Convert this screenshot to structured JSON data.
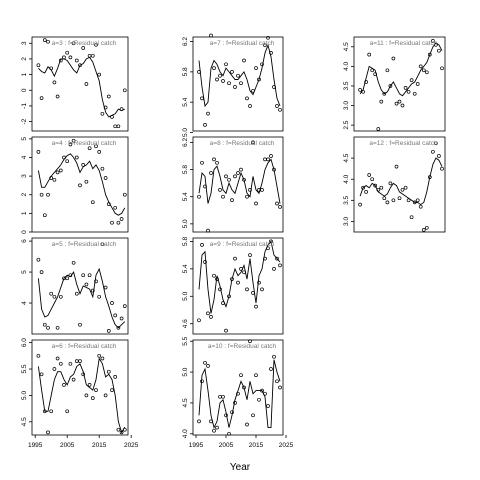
{
  "figure": {
    "xlabel": "Year"
  },
  "chart_data": [
    {
      "type": "line",
      "label": "a=3  :  f=Residual catch",
      "xlim": [
        1994,
        2024
      ],
      "ylim": [
        -2.6,
        3.4
      ],
      "xticks": [],
      "yticks": [
        -2,
        -1,
        0,
        1,
        2,
        3
      ],
      "points_x": [
        1996,
        1997,
        1998,
        1999,
        2000,
        2001,
        2002,
        2003,
        2004,
        2005,
        2006,
        2007,
        2008,
        2009,
        2010,
        2011,
        2012,
        2013,
        2014,
        2015,
        2016,
        2017,
        2018,
        2019,
        2020,
        2021,
        2022,
        2023
      ],
      "points_y": [
        1.6,
        -0.5,
        3.2,
        3.1,
        1.4,
        0.5,
        -0.4,
        1.9,
        2.1,
        2.4,
        2.1,
        3.0,
        1.9,
        1.6,
        2.7,
        0.4,
        2.2,
        2.2,
        2.9,
        1.0,
        -1.5,
        -1.1,
        -0.4,
        -1.7,
        -2.3,
        -2.3,
        -1.2,
        0.0
      ],
      "line_x": [
        1996,
        1997,
        1998,
        1999,
        2000,
        2001,
        2002,
        2003,
        2004,
        2005,
        2006,
        2007,
        2008,
        2009,
        2010,
        2011,
        2012,
        2013,
        2014,
        2015,
        2016,
        2017,
        2018,
        2019,
        2020,
        2021,
        2022,
        2023
      ],
      "line_y": [
        1.4,
        1.2,
        1.1,
        1.5,
        1.3,
        0.9,
        1.4,
        2.0,
        2.0,
        1.9,
        1.6,
        1.3,
        1.1,
        1.6,
        1.7,
        2.0,
        2.1,
        1.8,
        1.2,
        0.6,
        -0.6,
        -1.4,
        -1.7,
        -1.6,
        -1.5,
        -1.2,
        -1.3,
        -1.2
      ]
    },
    {
      "type": "line",
      "label": "a=7  :  f=Residual catch",
      "xlim": [
        1994,
        2024
      ],
      "ylim": [
        5.02,
        6.26
      ],
      "xticks": [],
      "yticks": [
        5.0,
        5.4,
        5.8,
        6.2
      ],
      "points_x": [
        1996,
        1997,
        1998,
        1999,
        2000,
        2001,
        2002,
        2003,
        2004,
        2005,
        2006,
        2007,
        2008,
        2009,
        2010,
        2011,
        2012,
        2013,
        2014,
        2015,
        2016,
        2017,
        2018,
        2019,
        2020,
        2021,
        2022,
        2023
      ],
      "points_y": [
        5.8,
        5.45,
        5.1,
        5.25,
        6.28,
        5.85,
        5.7,
        5.75,
        5.68,
        5.9,
        5.65,
        5.8,
        5.6,
        5.75,
        5.65,
        5.95,
        5.45,
        5.35,
        5.55,
        5.85,
        5.7,
        5.9,
        6.15,
        6.25,
        6.05,
        5.6,
        5.35,
        5.3
      ],
      "line_x": [
        1996,
        1997,
        1998,
        1999,
        2000,
        2001,
        2002,
        2003,
        2004,
        2005,
        2006,
        2007,
        2008,
        2009,
        2010,
        2011,
        2012,
        2013,
        2014,
        2015,
        2016,
        2017,
        2018,
        2019,
        2020,
        2021,
        2022,
        2023
      ],
      "line_y": [
        5.95,
        5.6,
        5.35,
        5.4,
        5.85,
        5.95,
        5.9,
        5.8,
        5.75,
        5.85,
        5.8,
        5.75,
        5.7,
        5.7,
        5.75,
        5.8,
        5.7,
        5.55,
        5.5,
        5.6,
        5.7,
        5.85,
        6.05,
        6.15,
        6.0,
        5.7,
        5.45,
        5.35
      ]
    },
    {
      "type": "line",
      "label": "a=11  :  f=Residual catch",
      "xlim": [
        1994,
        2024
      ],
      "ylim": [
        2.35,
        4.75
      ],
      "xticks": [],
      "yticks": [
        2.5,
        3.0,
        3.5,
        4.0,
        4.5
      ],
      "points_x": [
        1996,
        1997,
        1998,
        1999,
        2000,
        2001,
        2002,
        2003,
        2004,
        2005,
        2006,
        2007,
        2008,
        2009,
        2010,
        2011,
        2012,
        2013,
        2014,
        2015,
        2016,
        2017,
        2018,
        2019,
        2020,
        2021,
        2022,
        2023
      ],
      "points_y": [
        3.4,
        3.35,
        3.6,
        4.3,
        3.9,
        3.8,
        2.4,
        3.1,
        3.3,
        3.9,
        3.5,
        4.2,
        3.05,
        3.1,
        3.0,
        3.45,
        3.35,
        3.65,
        3.3,
        3.55,
        4.0,
        3.9,
        3.85,
        4.3,
        4.65,
        4.55,
        4.4,
        3.95
      ],
      "line_x": [
        1996,
        1997,
        1998,
        1999,
        2000,
        2001,
        2002,
        2003,
        2004,
        2005,
        2006,
        2007,
        2008,
        2009,
        2010,
        2011,
        2012,
        2013,
        2014,
        2015,
        2016,
        2017,
        2018,
        2019,
        2020,
        2021,
        2022,
        2023
      ],
      "line_y": [
        3.3,
        3.4,
        3.7,
        4.0,
        3.95,
        3.9,
        3.6,
        3.4,
        3.3,
        3.35,
        3.5,
        3.6,
        3.45,
        3.3,
        3.25,
        3.35,
        3.45,
        3.55,
        3.6,
        3.75,
        3.9,
        4.0,
        4.1,
        4.3,
        4.5,
        4.6,
        4.55,
        4.4
      ]
    },
    {
      "type": "line",
      "label": "a=4  :  f=Residual catch",
      "xlim": [
        1994,
        2024
      ],
      "ylim": [
        0.0,
        5.1
      ],
      "xticks": [],
      "yticks": [
        0,
        1,
        2,
        3,
        4,
        5
      ],
      "points_x": [
        1996,
        1997,
        1998,
        1999,
        2000,
        2001,
        2002,
        2003,
        2004,
        2005,
        2006,
        2007,
        2008,
        2009,
        2010,
        2011,
        2012,
        2013,
        2014,
        2015,
        2016,
        2017,
        2018,
        2019,
        2020,
        2021,
        2022,
        2023
      ],
      "points_y": [
        4.3,
        2.0,
        0.9,
        2.0,
        2.9,
        2.8,
        3.2,
        3.3,
        4.0,
        3.8,
        4.7,
        4.9,
        4.0,
        2.5,
        3.6,
        2.7,
        4.5,
        1.6,
        4.6,
        4.3,
        3.4,
        2.9,
        1.5,
        0.5,
        1.3,
        0.5,
        0.7,
        2.0
      ],
      "line_x": [
        1996,
        1997,
        1998,
        1999,
        2000,
        2001,
        2002,
        2003,
        2004,
        2005,
        2006,
        2007,
        2008,
        2009,
        2010,
        2011,
        2012,
        2013,
        2014,
        2015,
        2016,
        2017,
        2018,
        2019,
        2020,
        2021,
        2022,
        2023
      ],
      "line_y": [
        3.3,
        2.4,
        2.4,
        2.7,
        3.0,
        3.2,
        3.4,
        3.6,
        3.9,
        4.1,
        4.2,
        4.0,
        3.7,
        3.2,
        3.5,
        3.6,
        3.8,
        3.4,
        3.6,
        3.3,
        2.7,
        2.0,
        1.6,
        1.3,
        1.0,
        0.9,
        1.0,
        1.3
      ]
    },
    {
      "type": "line",
      "label": "a=8  :  f=Residual catch",
      "xlim": [
        1994,
        2024
      ],
      "ylim": [
        4.88,
        6.28
      ],
      "xticks": [],
      "yticks": [
        5.0,
        5.4,
        5.8,
        6.2
      ],
      "points_x": [
        1996,
        1997,
        1998,
        1999,
        2000,
        2001,
        2002,
        2003,
        2004,
        2005,
        2006,
        2007,
        2008,
        2009,
        2010,
        2011,
        2012,
        2013,
        2014,
        2015,
        2016,
        2017,
        2018,
        2019,
        2020,
        2021,
        2022,
        2023
      ],
      "points_y": [
        5.4,
        5.9,
        5.55,
        4.9,
        5.75,
        5.95,
        5.9,
        5.5,
        5.4,
        5.7,
        5.65,
        5.35,
        5.7,
        5.75,
        5.8,
        5.65,
        5.4,
        5.5,
        6.2,
        5.3,
        5.5,
        5.5,
        5.95,
        5.95,
        6.0,
        5.8,
        5.3,
        5.25
      ],
      "line_x": [
        1996,
        1997,
        1998,
        1999,
        2000,
        2001,
        2002,
        2003,
        2004,
        2005,
        2006,
        2007,
        2008,
        2009,
        2010,
        2011,
        2012,
        2013,
        2014,
        2015,
        2016,
        2017,
        2018,
        2019,
        2020,
        2021,
        2022,
        2023
      ],
      "line_y": [
        5.45,
        5.75,
        5.7,
        5.3,
        5.45,
        5.8,
        5.85,
        5.7,
        5.5,
        5.45,
        5.6,
        5.5,
        5.45,
        5.6,
        5.75,
        5.65,
        5.45,
        5.4,
        5.7,
        5.5,
        5.45,
        5.6,
        5.8,
        5.9,
        5.95,
        5.8,
        5.55,
        5.3
      ]
    },
    {
      "type": "line",
      "label": "a=12  :  f=Residual catch",
      "xlim": [
        1994,
        2024
      ],
      "ylim": [
        2.75,
        5.0
      ],
      "xticks": [],
      "yticks": [
        3.0,
        3.5,
        4.0,
        4.5
      ],
      "points_x": [
        1996,
        1997,
        1998,
        1999,
        2000,
        2001,
        2002,
        2003,
        2004,
        2005,
        2006,
        2007,
        2008,
        2009,
        2010,
        2011,
        2012,
        2013,
        2014,
        2015,
        2016,
        2017,
        2018,
        2019,
        2020,
        2021,
        2022,
        2023
      ],
      "points_y": [
        3.4,
        3.8,
        3.7,
        4.1,
        4.0,
        3.85,
        3.75,
        3.8,
        3.55,
        3.45,
        3.9,
        3.5,
        4.3,
        3.55,
        3.75,
        3.8,
        3.5,
        3.1,
        3.45,
        3.5,
        3.35,
        2.8,
        2.85,
        4.05,
        4.65,
        4.85,
        4.55,
        4.25
      ],
      "line_x": [
        1996,
        1997,
        1998,
        1999,
        2000,
        2001,
        2002,
        2003,
        2004,
        2005,
        2006,
        2007,
        2008,
        2009,
        2010,
        2011,
        2012,
        2013,
        2014,
        2015,
        2016,
        2017,
        2018,
        2019,
        2020,
        2021,
        2022,
        2023
      ],
      "line_y": [
        3.6,
        3.8,
        3.85,
        3.8,
        3.9,
        3.85,
        3.7,
        3.65,
        3.6,
        3.65,
        3.8,
        3.9,
        3.85,
        3.7,
        3.65,
        3.6,
        3.55,
        3.5,
        3.45,
        3.45,
        3.4,
        3.45,
        3.7,
        4.05,
        4.35,
        4.5,
        4.45,
        4.3
      ]
    },
    {
      "type": "line",
      "label": "a=5  :  f=Residual catch",
      "xlim": [
        1994,
        2024
      ],
      "ylim": [
        3.0,
        6.1
      ],
      "xticks": [],
      "yticks": [
        4.0,
        5.0,
        6.0
      ],
      "points_x": [
        1996,
        1997,
        1998,
        1999,
        2000,
        2001,
        2002,
        2003,
        2004,
        2005,
        2006,
        2007,
        2008,
        2009,
        2010,
        2011,
        2012,
        2013,
        2014,
        2015,
        2016,
        2017,
        2018,
        2019,
        2020,
        2021,
        2022,
        2023
      ],
      "points_y": [
        5.4,
        5.0,
        3.3,
        3.2,
        4.3,
        4.2,
        3.2,
        4.2,
        4.8,
        4.8,
        4.9,
        5.3,
        4.3,
        3.3,
        4.9,
        4.6,
        4.9,
        4.4,
        4.7,
        4.2,
        5.9,
        4.5,
        3.1,
        4.0,
        3.6,
        3.2,
        3.5,
        3.9
      ],
      "line_x": [
        1996,
        1997,
        1998,
        1999,
        2000,
        2001,
        2002,
        2003,
        2004,
        2005,
        2006,
        2007,
        2008,
        2009,
        2010,
        2011,
        2012,
        2013,
        2014,
        2015,
        2016,
        2017,
        2018,
        2019,
        2020,
        2021,
        2022,
        2023
      ],
      "line_y": [
        4.8,
        3.8,
        3.55,
        3.6,
        3.8,
        4.0,
        4.2,
        4.5,
        4.8,
        4.9,
        4.85,
        5.0,
        4.6,
        4.3,
        4.55,
        4.5,
        4.45,
        4.2,
        4.9,
        5.1,
        4.7,
        4.2,
        3.9,
        3.55,
        3.3,
        3.2,
        3.3,
        3.4
      ]
    },
    {
      "type": "line",
      "label": "a=9  :  f=Residual catch",
      "xlim": [
        1994,
        2024
      ],
      "ylim": [
        4.45,
        5.85
      ],
      "xticks": [],
      "yticks": [
        4.6,
        5.0,
        5.4,
        5.8
      ],
      "points_x": [
        1996,
        1997,
        1998,
        1999,
        2000,
        2001,
        2002,
        2003,
        2004,
        2005,
        2006,
        2007,
        2008,
        2009,
        2010,
        2011,
        2012,
        2013,
        2014,
        2015,
        2016,
        2017,
        2018,
        2019,
        2020,
        2021,
        2022,
        2023
      ],
      "points_y": [
        4.65,
        5.75,
        5.5,
        4.75,
        4.7,
        5.3,
        5.25,
        5.1,
        4.9,
        4.5,
        5.0,
        5.25,
        5.55,
        5.2,
        5.4,
        5.35,
        5.1,
        5.6,
        5.05,
        4.85,
        5.2,
        5.1,
        5.55,
        5.7,
        5.8,
        5.4,
        5.55,
        5.45
      ],
      "line_x": [
        1996,
        1997,
        1998,
        1999,
        2000,
        2001,
        2002,
        2003,
        2004,
        2005,
        2006,
        2007,
        2008,
        2009,
        2010,
        2011,
        2012,
        2013,
        2014,
        2015,
        2016,
        2017,
        2018,
        2019,
        2020,
        2021,
        2022,
        2023
      ],
      "line_y": [
        5.1,
        5.6,
        5.65,
        5.1,
        4.75,
        4.95,
        5.3,
        5.15,
        4.95,
        4.85,
        5.0,
        5.25,
        5.4,
        5.3,
        5.35,
        5.45,
        5.25,
        5.55,
        5.2,
        4.9,
        5.3,
        5.4,
        5.65,
        5.75,
        5.8,
        5.6,
        5.55,
        5.5
      ]
    },
    {
      "type": "line",
      "label": "a=6  :  f=Residual catch",
      "xlim": [
        1994,
        2024
      ],
      "ylim": [
        4.25,
        6.05
      ],
      "xticks": [
        1995,
        2005,
        2015,
        2025
      ],
      "yticks": [
        4.5,
        5.0,
        5.5,
        6.0
      ],
      "points_x": [
        1996,
        1997,
        1998,
        1999,
        2000,
        2001,
        2002,
        2003,
        2004,
        2005,
        2006,
        2007,
        2008,
        2009,
        2010,
        2011,
        2012,
        2013,
        2014,
        2015,
        2016,
        2017,
        2018,
        2019,
        2020,
        2021,
        2022,
        2023
      ],
      "points_y": [
        5.75,
        5.4,
        4.7,
        4.3,
        4.7,
        5.5,
        5.7,
        5.6,
        5.2,
        4.7,
        5.6,
        5.3,
        5.65,
        5.65,
        5.4,
        5.0,
        5.2,
        4.95,
        5.1,
        5.75,
        5.7,
        5.0,
        5.45,
        5.1,
        5.35,
        4.35,
        4.3,
        4.35
      ],
      "line_x": [
        1996,
        1997,
        1998,
        1999,
        2000,
        2001,
        2002,
        2003,
        2004,
        2005,
        2006,
        2007,
        2008,
        2009,
        2010,
        2011,
        2012,
        2013,
        2014,
        2015,
        2016,
        2017,
        2018,
        2019,
        2020,
        2021,
        2022,
        2023
      ],
      "line_y": [
        5.55,
        5.1,
        4.7,
        4.7,
        5.0,
        5.3,
        5.45,
        5.45,
        5.3,
        5.2,
        5.35,
        5.4,
        5.55,
        5.6,
        5.45,
        5.2,
        5.15,
        5.1,
        5.3,
        5.7,
        5.6,
        5.35,
        5.4,
        5.3,
        5.0,
        4.5,
        4.3,
        4.4
      ]
    },
    {
      "type": "line",
      "label": "a=10  :  f=Residual catch",
      "xlim": [
        1994,
        2024
      ],
      "ylim": [
        3.98,
        5.52
      ],
      "xticks": [
        1995,
        2005,
        2015,
        2025
      ],
      "yticks": [
        4.0,
        4.5,
        5.0,
        5.5
      ],
      "points_x": [
        1996,
        1997,
        1998,
        1999,
        2000,
        2001,
        2002,
        2003,
        2004,
        2005,
        2006,
        2007,
        2008,
        2009,
        2010,
        2011,
        2012,
        2013,
        2014,
        2015,
        2016,
        2017,
        2018,
        2019,
        2020,
        2021,
        2022,
        2023
      ],
      "points_y": [
        4.2,
        4.85,
        5.15,
        5.1,
        4.2,
        4.05,
        4.1,
        4.6,
        4.6,
        4.3,
        4.0,
        4.35,
        4.5,
        4.65,
        4.95,
        4.75,
        4.15,
        5.5,
        4.3,
        4.95,
        4.55,
        4.7,
        4.65,
        4.45,
        5.05,
        5.25,
        4.85,
        4.75
      ],
      "line_x": [
        1996,
        1997,
        1998,
        1999,
        2000,
        2001,
        2002,
        2003,
        2004,
        2005,
        2006,
        2007,
        2008,
        2009,
        2010,
        2011,
        2012,
        2013,
        2014,
        2015,
        2016,
        2017,
        2018,
        2019,
        2020,
        2021,
        2022,
        2023
      ],
      "line_y": [
        4.3,
        4.95,
        5.05,
        4.7,
        4.3,
        4.1,
        4.2,
        4.5,
        4.55,
        4.35,
        4.1,
        4.3,
        4.55,
        4.7,
        4.85,
        4.75,
        4.55,
        4.85,
        4.65,
        4.7,
        4.7,
        4.7,
        4.6,
        4.1,
        4.1,
        5.2,
        5.0,
        4.85
      ]
    }
  ]
}
